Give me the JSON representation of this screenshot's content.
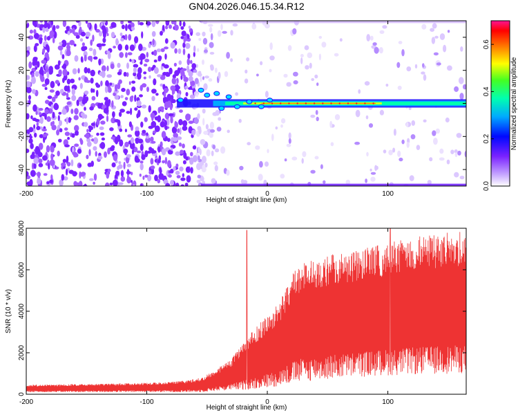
{
  "title": "GN04.2026.046.15.34.R12",
  "chart_data": [
    {
      "type": "heatmap",
      "xlabel": "Height of straight line (km)",
      "ylabel": "Frequency (Hz)",
      "xlim": [
        -200,
        165
      ],
      "ylim": [
        -50,
        50
      ],
      "xticks": [
        "-200",
        "-100",
        "0",
        "100"
      ],
      "yticks": [
        "-40",
        "-20",
        "0",
        "20",
        "40"
      ],
      "colorbar": {
        "label": "Normalized spectral amplitude",
        "range": [
          0,
          0.7
        ],
        "ticks": [
          "0.0",
          "0.2",
          "0.4",
          "0.6"
        ]
      },
      "features": {
        "noise_region_x": [
          -200,
          -40
        ],
        "tone_start_x": -75,
        "tone_peak_x": [
          -20,
          95
        ],
        "tone_frequency_hz": 0,
        "edge_bands_hz": [
          -49,
          49
        ]
      }
    },
    {
      "type": "line",
      "xlabel": "Height of straight line (km)",
      "ylabel": "SNR (10 * v/v)",
      "xlim": [
        -200,
        165
      ],
      "ylim": [
        0,
        8000
      ],
      "xticks": [
        "-200",
        "-100",
        "0",
        "100"
      ],
      "yticks": [
        "0",
        "2000",
        "4000",
        "6000",
        "8000"
      ],
      "color": "#ee3333",
      "envelope": {
        "x": [
          -200,
          -150,
          -100,
          -70,
          -55,
          -45,
          -30,
          -20,
          -10,
          0,
          10,
          20,
          30,
          50,
          70,
          100,
          130,
          165
        ],
        "upper": [
          450,
          500,
          550,
          650,
          800,
          1100,
          1700,
          2500,
          3200,
          3800,
          4400,
          5800,
          6400,
          6700,
          6900,
          7300,
          7700,
          7900
        ],
        "lower": [
          100,
          100,
          100,
          100,
          100,
          150,
          200,
          200,
          250,
          300,
          400,
          500,
          600,
          700,
          800,
          900,
          950,
          1000
        ]
      },
      "spikes": [
        {
          "x": -17,
          "y": 7900
        },
        {
          "x": 102,
          "y": 8200
        }
      ]
    }
  ]
}
